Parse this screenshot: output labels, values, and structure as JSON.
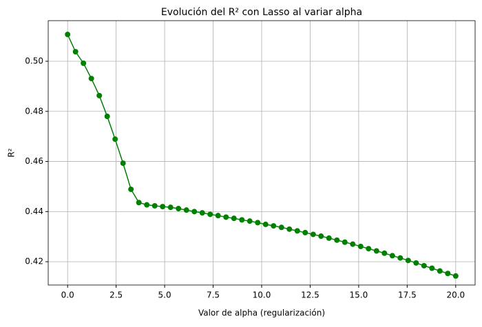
{
  "chart_data": {
    "type": "line",
    "title": "Evolución del R² con Lasso al variar alpha",
    "x_label": "Valor de alpha (regularización)",
    "y_label": "R²",
    "x": [
      0,
      0.408,
      0.816,
      1.224,
      1.633,
      2.041,
      2.449,
      2.857,
      3.265,
      3.673,
      4.082,
      4.49,
      4.898,
      5.306,
      5.714,
      6.122,
      6.531,
      6.939,
      7.347,
      7.755,
      8.163,
      8.571,
      8.98,
      9.388,
      9.796,
      10.204,
      10.612,
      11.02,
      11.429,
      11.837,
      12.245,
      12.653,
      13.061,
      13.469,
      13.878,
      14.286,
      14.694,
      15.102,
      15.51,
      15.918,
      16.327,
      16.735,
      17.143,
      17.551,
      17.959,
      18.367,
      18.776,
      19.184,
      19.592,
      20
    ],
    "series": [
      {
        "name": "R²",
        "color": "#008000",
        "values": [
          0.5107,
          0.5038,
          0.4992,
          0.4931,
          0.4863,
          0.478,
          0.4689,
          0.4593,
          0.4489,
          0.4436,
          0.4427,
          0.4423,
          0.442,
          0.4417,
          0.4412,
          0.4406,
          0.44,
          0.4395,
          0.4389,
          0.4384,
          0.4378,
          0.4373,
          0.4367,
          0.4362,
          0.4356,
          0.4349,
          0.4343,
          0.4337,
          0.433,
          0.4323,
          0.4316,
          0.4309,
          0.4302,
          0.4294,
          0.4286,
          0.4278,
          0.427,
          0.4261,
          0.4252,
          0.4243,
          0.4234,
          0.4224,
          0.4215,
          0.4205,
          0.4195,
          0.4184,
          0.4174,
          0.4163,
          0.4153,
          0.4143
        ]
      }
    ],
    "xlim": [
      -1,
      21
    ],
    "ylim": [
      0.4107,
      0.5162
    ],
    "xticks": [
      {
        "value": 0,
        "label": "0.0"
      },
      2.5,
      {
        "value": 5,
        "label": "5.0"
      },
      7.5,
      {
        "value": 10,
        "label": "10.0"
      },
      12.5,
      {
        "value": 15,
        "label": "15.0"
      },
      17.5,
      {
        "value": 20,
        "label": "20.0"
      }
    ],
    "yticks": [
      0.42,
      0.44,
      0.46,
      0.48,
      {
        "value": 0.5,
        "label": "0.50"
      }
    ],
    "grid": true
  }
}
